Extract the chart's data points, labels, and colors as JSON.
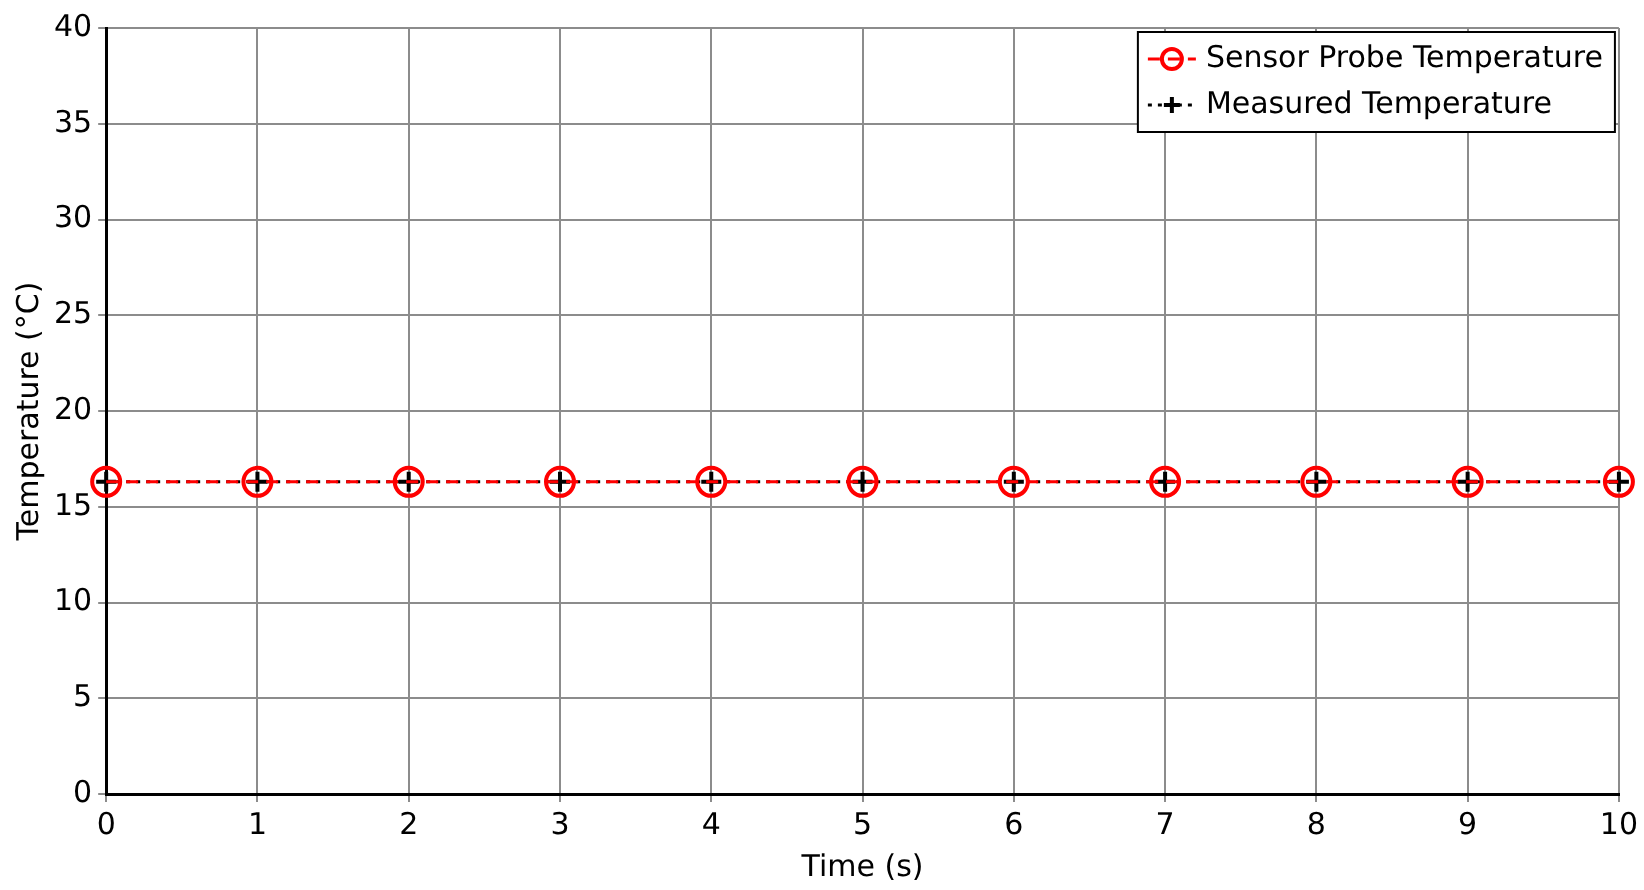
{
  "chart_data": {
    "type": "line",
    "xlabel": "Time (s)",
    "ylabel": "Temperature (°C)",
    "x": [
      0,
      1,
      2,
      3,
      4,
      5,
      6,
      7,
      8,
      9,
      10
    ],
    "series": [
      {
        "name": "Sensor Probe Temperature",
        "color": "#ff0000",
        "marker": "circle",
        "line_style": "dashed",
        "values": [
          16.3,
          16.3,
          16.3,
          16.3,
          16.3,
          16.3,
          16.3,
          16.3,
          16.3,
          16.3,
          16.3
        ]
      },
      {
        "name": "Measured Temperature",
        "color": "#000000",
        "marker": "cross",
        "line_style": "dotted",
        "values": [
          16.3,
          16.3,
          16.3,
          16.3,
          16.3,
          16.3,
          16.3,
          16.3,
          16.3,
          16.3,
          16.3
        ]
      }
    ],
    "xlim": [
      0,
      10
    ],
    "xticks": [
      0,
      1,
      2,
      3,
      4,
      5,
      6,
      7,
      8,
      9,
      10
    ],
    "ylim": [
      0,
      40
    ],
    "yticks": [
      0,
      5,
      10,
      15,
      20,
      25,
      30,
      35,
      40
    ],
    "grid": true,
    "legend": "top right"
  }
}
